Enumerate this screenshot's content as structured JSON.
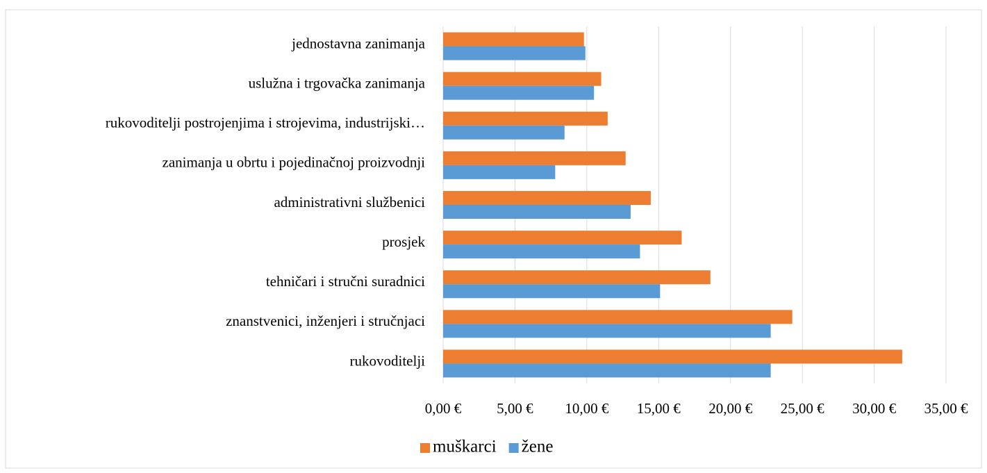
{
  "chart_data": {
    "type": "hbar",
    "categories": [
      "jednostavna zanimanja",
      "uslužna i trgovačka zanimanja",
      "rukovoditelji postrojenjima i strojevima, industrijski…",
      "zanimanja u obrtu i pojedinačnoj proizvodnji",
      "administrativni službenici",
      "prosjek",
      "tehničari i stručni suradnici",
      "znanstvenici, inženjeri i stručnjaci",
      "rukovoditelji"
    ],
    "series": [
      {
        "name": "muškarci",
        "color": "#ed7d31",
        "values": [
          9.8,
          11.0,
          11.45,
          12.7,
          14.45,
          16.6,
          18.6,
          24.3,
          31.95
        ]
      },
      {
        "name": "žene",
        "color": "#5b9bd5",
        "values": [
          9.9,
          10.5,
          8.45,
          7.8,
          13.05,
          13.7,
          15.1,
          22.8,
          22.8
        ]
      }
    ],
    "xlim": [
      0,
      35
    ],
    "xticks": [
      {
        "value": 0,
        "label": "0,00 €"
      },
      {
        "value": 5,
        "label": "5,00 €"
      },
      {
        "value": 10,
        "label": "10,00 €"
      },
      {
        "value": 15,
        "label": "15,00 €"
      },
      {
        "value": 20,
        "label": "20,00 €"
      },
      {
        "value": 25,
        "label": "25,00 €"
      },
      {
        "value": 30,
        "label": "30,00 €"
      },
      {
        "value": 35,
        "label": "35,00 €"
      }
    ],
    "grid": true,
    "legend": "bottom"
  }
}
